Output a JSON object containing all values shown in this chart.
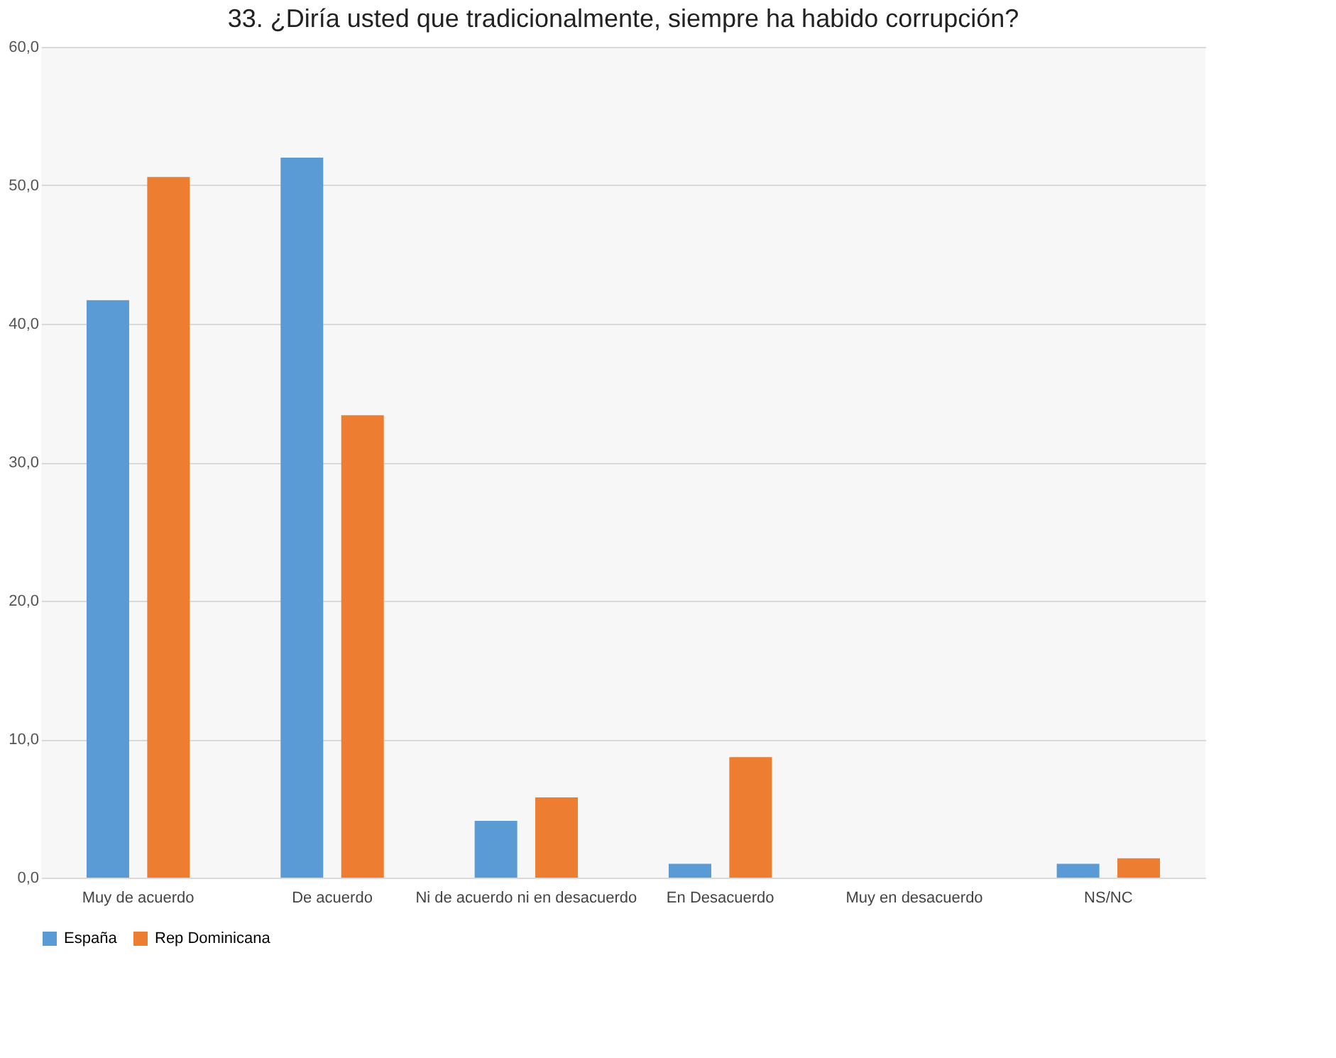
{
  "chart_data": {
    "type": "bar",
    "title": "33. ¿Diría usted que tradicionalmente, siempre ha habido corrupción?",
    "categories": [
      "Muy de acuerdo",
      "De acuerdo",
      "Ni de acuerdo ni en desacuerdo",
      "En Desacuerdo",
      "Muy en desacuerdo",
      "NS/NC"
    ],
    "series": [
      {
        "name": "España",
        "color": "#5b9bd5",
        "values": [
          41.7,
          52.0,
          4.1,
          1.0,
          0,
          1.0
        ]
      },
      {
        "name": "Rep Dominicana",
        "color": "#ed7d31",
        "values": [
          50.6,
          33.4,
          5.8,
          8.7,
          0,
          1.4
        ]
      }
    ],
    "ylim": [
      0,
      60
    ],
    "yticks": [
      {
        "value": 0,
        "label": "0,0"
      },
      {
        "value": 10,
        "label": "10,0"
      },
      {
        "value": 20,
        "label": "20,0"
      },
      {
        "value": 30,
        "label": "30,0"
      },
      {
        "value": 40,
        "label": "40,0"
      },
      {
        "value": 50,
        "label": "50,0"
      },
      {
        "value": 60,
        "label": "60,0"
      }
    ],
    "grid": "y",
    "legend": "bottom"
  }
}
